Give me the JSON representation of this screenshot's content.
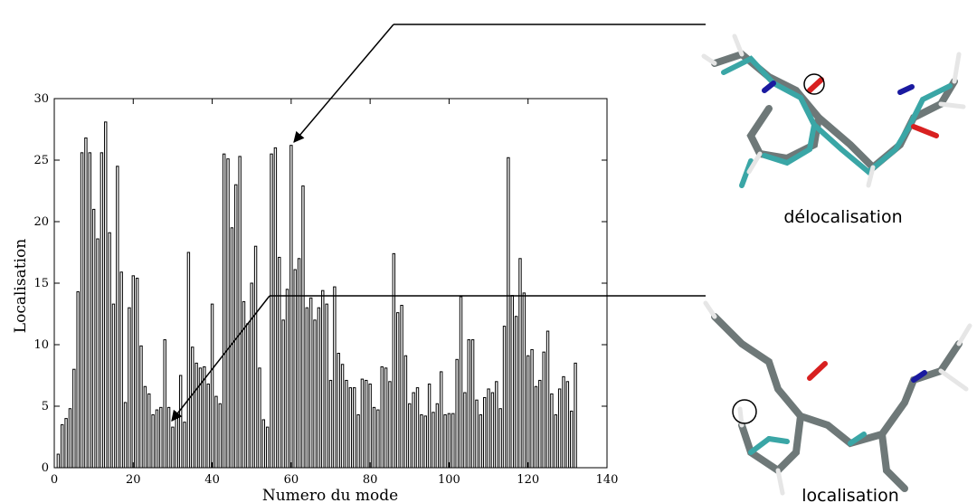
{
  "chart_data": {
    "type": "bar",
    "title": "",
    "xlabel": "Numero du mode",
    "ylabel": "Localisation",
    "xlim": [
      0,
      140
    ],
    "ylim": [
      0,
      30
    ],
    "xticks": [
      0,
      20,
      40,
      60,
      80,
      100,
      120,
      140
    ],
    "yticks": [
      0,
      5,
      10,
      15,
      20,
      25,
      30
    ],
    "grid": false,
    "legend": "none",
    "x": [
      1,
      2,
      3,
      4,
      5,
      6,
      7,
      8,
      9,
      10,
      11,
      12,
      13,
      14,
      15,
      16,
      17,
      18,
      19,
      20,
      21,
      22,
      23,
      24,
      25,
      26,
      27,
      28,
      29,
      30,
      31,
      32,
      33,
      34,
      35,
      36,
      37,
      38,
      39,
      40,
      41,
      42,
      43,
      44,
      45,
      46,
      47,
      48,
      49,
      50,
      51,
      52,
      53,
      54,
      55,
      56,
      57,
      58,
      59,
      60,
      61,
      62,
      63,
      64,
      65,
      66,
      67,
      68,
      69,
      70,
      71,
      72,
      73,
      74,
      75,
      76,
      77,
      78,
      79,
      80,
      81,
      82,
      83,
      84,
      85,
      86,
      87,
      88,
      89,
      90,
      91,
      92,
      93,
      94,
      95,
      96,
      97,
      98,
      99,
      100,
      101,
      102,
      103,
      104,
      105,
      106,
      107,
      108,
      109,
      110,
      111,
      112,
      113,
      114,
      115,
      116,
      117,
      118,
      119,
      120,
      121,
      122,
      123,
      124,
      125,
      126,
      127,
      128,
      129,
      130,
      131,
      132
    ],
    "values": [
      1.1,
      3.5,
      4.0,
      4.8,
      8.0,
      14.3,
      25.6,
      26.8,
      25.6,
      21.0,
      18.6,
      25.6,
      28.1,
      19.1,
      13.3,
      24.5,
      15.9,
      5.3,
      13.0,
      15.6,
      15.4,
      9.9,
      6.6,
      6.0,
      4.3,
      4.7,
      4.9,
      10.4,
      4.9,
      3.3,
      4.1,
      7.5,
      3.7,
      17.5,
      9.8,
      8.5,
      8.1,
      8.2,
      6.8,
      13.3,
      5.8,
      5.2,
      25.5,
      25.1,
      19.5,
      23.0,
      25.3,
      13.5,
      11.7,
      15.0,
      18.0,
      8.1,
      3.9,
      3.3,
      25.5,
      26.0,
      17.1,
      12.0,
      14.5,
      26.2,
      16.1,
      17.0,
      22.9,
      13.0,
      13.8,
      12.0,
      13.0,
      14.4,
      13.3,
      7.1,
      14.7,
      9.3,
      8.4,
      7.1,
      6.5,
      6.5,
      4.3,
      7.2,
      7.1,
      6.8,
      4.9,
      4.7,
      8.2,
      8.1,
      7.0,
      17.4,
      12.6,
      13.2,
      9.1,
      5.2,
      6.1,
      6.5,
      4.3,
      4.2,
      6.8,
      4.5,
      5.2,
      7.8,
      4.3,
      4.4,
      4.4,
      8.8,
      13.9,
      6.1,
      10.4,
      10.4,
      5.5,
      4.3,
      5.7,
      6.4,
      6.1,
      7.0,
      4.8,
      11.5,
      25.2,
      14.0,
      12.3,
      17.0,
      14.2,
      9.1,
      9.6,
      6.6,
      7.1,
      9.4,
      11.1,
      6.0,
      4.3,
      6.4,
      7.4,
      7.0,
      4.6,
      8.5
    ]
  },
  "annotations": {
    "top_label": "délocalisation",
    "bottom_label": "localisation"
  },
  "colors": {
    "bar_fill": "#ffffff",
    "bar_stroke": "#000000",
    "carbon": "#3aa6a6",
    "carbon_ghost": "#6e7878",
    "nitrogen": "#1a1aa0",
    "oxygen": "#d82020",
    "hydrogen": "#e6e6e6"
  }
}
